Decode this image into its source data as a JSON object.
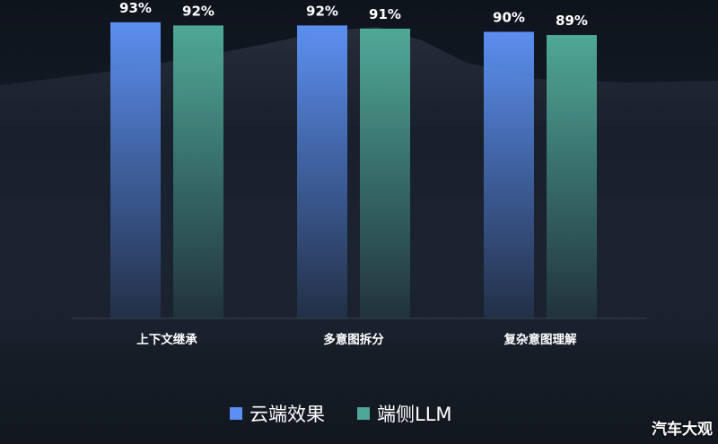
{
  "chart_data": {
    "type": "bar",
    "categories": [
      "上下文继承",
      "多意图拆分",
      "复杂意图理解"
    ],
    "series": [
      {
        "name": "云端效果",
        "values": [
          93,
          92,
          90
        ],
        "labels": [
          "93%",
          "92%",
          "90%"
        ],
        "color": "#5b8ff0"
      },
      {
        "name": "端侧LLM",
        "values": [
          92,
          91,
          89
        ],
        "labels": [
          "92%",
          "91%",
          "89%"
        ],
        "color": "#4fa897"
      }
    ],
    "ylim": [
      0,
      100
    ],
    "unit": "%",
    "legend_position": "bottom-center",
    "grid": false
  },
  "watermark": "汽车大观"
}
